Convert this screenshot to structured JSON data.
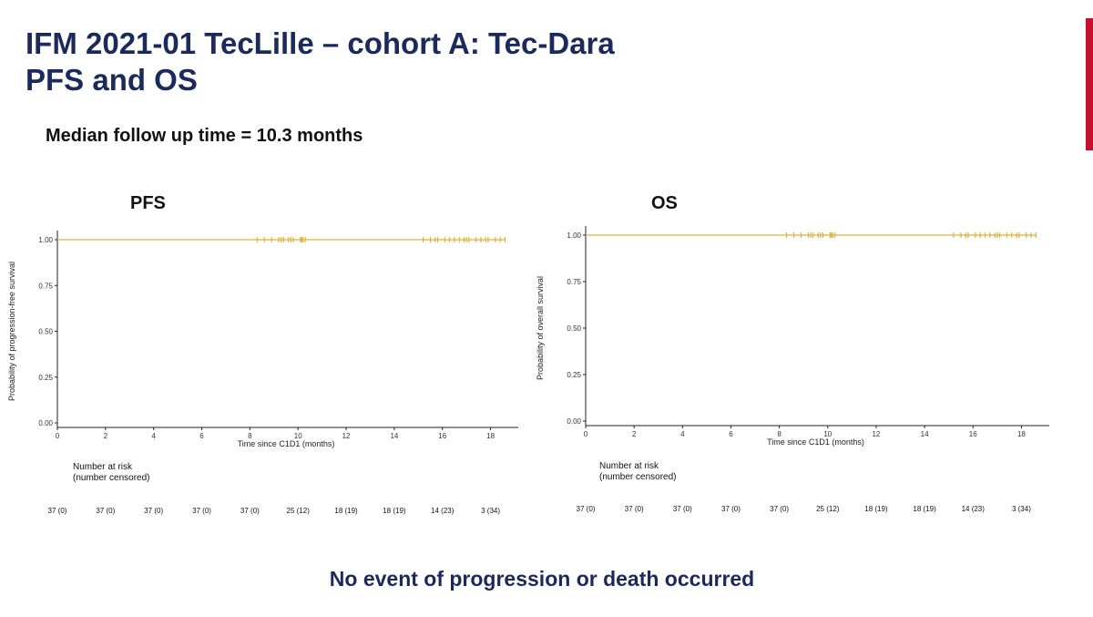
{
  "slide": {
    "title_line1": "IFM 2021-01 TecLille – cohort A: Tec-Dara",
    "title_line2": "PFS and OS",
    "followup": "Median follow up time = 10.3 months",
    "footer": "No event of progression or death occurred",
    "accent_color": "#c8102e",
    "title_color": "#1b2a5c",
    "curve_color": "#e0b23a"
  },
  "chart_data": [
    {
      "type": "line",
      "panel_label": "PFS",
      "ylabel": "Probability of progression-free survival",
      "xlabel": "Time since C1D1 (months)",
      "xlim": [
        0,
        19
      ],
      "ylim": [
        0,
        1
      ],
      "x_ticks": [
        0,
        2,
        4,
        6,
        8,
        10,
        12,
        14,
        16,
        18
      ],
      "y_ticks": [
        "0.00",
        "0.25",
        "0.50",
        "0.75",
        "1.00"
      ],
      "series": [
        {
          "x": [
            0,
            18.6
          ],
          "y": [
            1.0,
            1.0
          ]
        }
      ],
      "censor_marks": [
        8.3,
        8.6,
        8.9,
        9.2,
        9.3,
        9.4,
        9.6,
        9.7,
        9.8,
        10.1,
        10.15,
        10.2,
        10.3,
        15.2,
        15.5,
        15.7,
        15.8,
        16.1,
        16.3,
        16.5,
        16.7,
        16.9,
        17.0,
        17.1,
        17.4,
        17.6,
        17.8,
        17.9,
        18.2,
        18.4,
        18.6
      ],
      "risk_table": {
        "header_line1": "Number at risk",
        "header_line2": "(number censored)",
        "values": [
          "37 (0)",
          "37 (0)",
          "37 (0)",
          "37 (0)",
          "37 (0)",
          "25 (12)",
          "18 (19)",
          "18 (19)",
          "14 (23)",
          "3 (34)"
        ]
      }
    },
    {
      "type": "line",
      "panel_label": "OS",
      "ylabel": "Probability of overall survival",
      "xlabel": "Time since C1D1 (months)",
      "xlim": [
        0,
        19
      ],
      "ylim": [
        0,
        1
      ],
      "x_ticks": [
        0,
        2,
        4,
        6,
        8,
        10,
        12,
        14,
        16,
        18
      ],
      "y_ticks": [
        "0.00",
        "0.25",
        "0.50",
        "0.75",
        "1.00"
      ],
      "series": [
        {
          "x": [
            0,
            18.6
          ],
          "y": [
            1.0,
            1.0
          ]
        }
      ],
      "censor_marks": [
        8.3,
        8.6,
        8.9,
        9.2,
        9.3,
        9.4,
        9.6,
        9.7,
        9.8,
        10.1,
        10.15,
        10.2,
        10.3,
        15.2,
        15.5,
        15.7,
        15.8,
        16.1,
        16.3,
        16.5,
        16.7,
        16.9,
        17.0,
        17.1,
        17.4,
        17.6,
        17.8,
        17.9,
        18.2,
        18.4,
        18.6
      ],
      "risk_table": {
        "header_line1": "Number at risk",
        "header_line2": "(number censored)",
        "values": [
          "37 (0)",
          "37 (0)",
          "37 (0)",
          "37 (0)",
          "37 (0)",
          "25 (12)",
          "18 (19)",
          "18 (19)",
          "14 (23)",
          "3 (34)"
        ]
      }
    }
  ]
}
